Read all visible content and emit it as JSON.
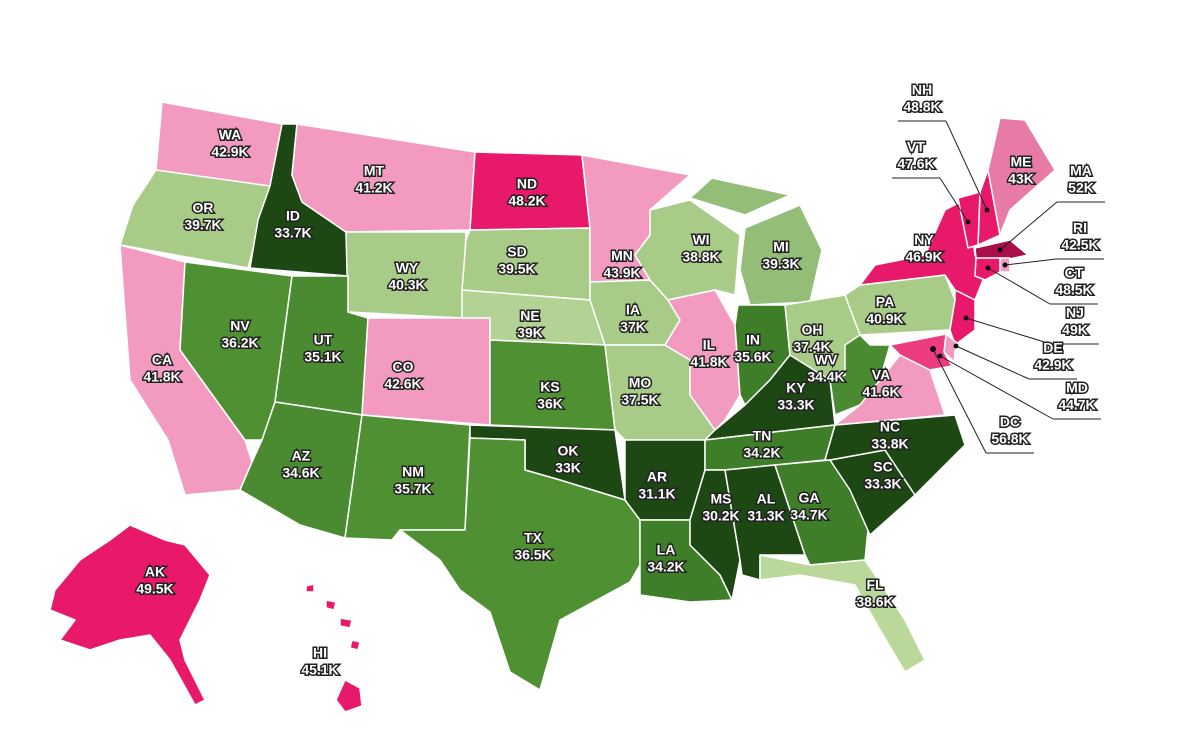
{
  "map": {
    "type": "choropleth",
    "states": [
      {
        "code": "WA",
        "value": 42900,
        "label": "42.9K",
        "color": "#f39ac0"
      },
      {
        "code": "OR",
        "value": 39700,
        "label": "39.7K",
        "color": "#a8cc87"
      },
      {
        "code": "CA",
        "value": 41800,
        "label": "41.8K",
        "color": "#f39ac0"
      },
      {
        "code": "ID",
        "value": 33700,
        "label": "33.7K",
        "color": "#1e4813"
      },
      {
        "code": "NV",
        "value": 36200,
        "label": "36.2K",
        "color": "#4f9033"
      },
      {
        "code": "MT",
        "value": 41200,
        "label": "41.2K",
        "color": "#f39ac0"
      },
      {
        "code": "WY",
        "value": 40300,
        "label": "40.3K",
        "color": "#a8cc87"
      },
      {
        "code": "UT",
        "value": 35100,
        "label": "35.1K",
        "color": "#4a8a30"
      },
      {
        "code": "AZ",
        "value": 34600,
        "label": "34.6K",
        "color": "#4a8a30"
      },
      {
        "code": "CO",
        "value": 42600,
        "label": "42.6K",
        "color": "#f39ac0"
      },
      {
        "code": "NM",
        "value": 35700,
        "label": "35.7K",
        "color": "#4f9033"
      },
      {
        "code": "ND",
        "value": 48200,
        "label": "48.2K",
        "color": "#e8186b"
      },
      {
        "code": "SD",
        "value": 39500,
        "label": "39.5K",
        "color": "#a8cc87"
      },
      {
        "code": "NE",
        "value": 39000,
        "label": "39K",
        "color": "#b3d394"
      },
      {
        "code": "KS",
        "value": 36000,
        "label": "36K",
        "color": "#4f9033"
      },
      {
        "code": "OK",
        "value": 33000,
        "label": "33K",
        "color": "#1e4813"
      },
      {
        "code": "TX",
        "value": 36500,
        "label": "36.5K",
        "color": "#4f9033"
      },
      {
        "code": "MN",
        "value": 43900,
        "label": "43.9K",
        "color": "#f39ac0"
      },
      {
        "code": "IA",
        "value": 37000,
        "label": "37K",
        "color": "#a8cc87"
      },
      {
        "code": "MO",
        "value": 37500,
        "label": "37.5K",
        "color": "#a8cc87"
      },
      {
        "code": "AR",
        "value": 31100,
        "label": "31.1K",
        "color": "#1e4813"
      },
      {
        "code": "LA",
        "value": 34200,
        "label": "34.2K",
        "color": "#3f7e28"
      },
      {
        "code": "WI",
        "value": 38800,
        "label": "38.8K",
        "color": "#a8cc87"
      },
      {
        "code": "IL",
        "value": 41800,
        "label": "41.8K",
        "color": "#f39ac0"
      },
      {
        "code": "MI",
        "value": 39300,
        "label": "39.3K",
        "color": "#94bd78"
      },
      {
        "code": "IN",
        "value": 35600,
        "label": "35.6K",
        "color": "#3f7e28"
      },
      {
        "code": "KY",
        "value": 33300,
        "label": "33.3K",
        "color": "#1e4813"
      },
      {
        "code": "TN",
        "value": 34200,
        "label": "34.2K",
        "color": "#3f7e28"
      },
      {
        "code": "MS",
        "value": 30200,
        "label": "30.2K",
        "color": "#1e4813"
      },
      {
        "code": "AL",
        "value": 31300,
        "label": "31.3K",
        "color": "#1e4813"
      },
      {
        "code": "GA",
        "value": 34700,
        "label": "34.7K",
        "color": "#3f7e28"
      },
      {
        "code": "FL",
        "value": 38600,
        "label": "38.6K",
        "color": "#b9d89a"
      },
      {
        "code": "SC",
        "value": 33300,
        "label": "33.3K",
        "color": "#1e4813"
      },
      {
        "code": "NC",
        "value": 33800,
        "label": "33.8K",
        "color": "#1e4813"
      },
      {
        "code": "OH",
        "value": 37400,
        "label": "37.4K",
        "color": "#a8cc87"
      },
      {
        "code": "WV",
        "value": 34400,
        "label": "34.4K",
        "color": "#4a8a30"
      },
      {
        "code": "VA",
        "value": 41600,
        "label": "41.6K",
        "color": "#f39ac0"
      },
      {
        "code": "PA",
        "value": 40900,
        "label": "40.9K",
        "color": "#a8cc87"
      },
      {
        "code": "NY",
        "value": 46900,
        "label": "46.9K",
        "color": "#e8186b"
      },
      {
        "code": "AK",
        "value": 49500,
        "label": "49.5K",
        "color": "#e8186b"
      },
      {
        "code": "HI",
        "value": 45100,
        "label": "45.1K",
        "color": "#e8186b"
      },
      {
        "code": "NH",
        "value": 48800,
        "label": "48.8K",
        "color": "#e8186b"
      },
      {
        "code": "VT",
        "value": 47600,
        "label": "47.6K",
        "color": "#e8186b"
      },
      {
        "code": "ME",
        "value": 43000,
        "label": "43K",
        "color": "#e87aa8"
      },
      {
        "code": "MA",
        "value": 52000,
        "label": "52K",
        "color": "#a8104c"
      },
      {
        "code": "RI",
        "value": 42500,
        "label": "42.5K",
        "color": "#f39ac0"
      },
      {
        "code": "CT",
        "value": 48500,
        "label": "48.5K",
        "color": "#e8186b"
      },
      {
        "code": "NJ",
        "value": 49000,
        "label": "49K",
        "color": "#e8186b"
      },
      {
        "code": "DE",
        "value": 42900,
        "label": "42.9K",
        "color": "#f39ac0"
      },
      {
        "code": "MD",
        "value": 44700,
        "label": "44.7K",
        "color": "#ec3d80"
      },
      {
        "code": "DC",
        "value": 56800,
        "label": "56.8K",
        "color": "#7a0a36"
      }
    ]
  }
}
